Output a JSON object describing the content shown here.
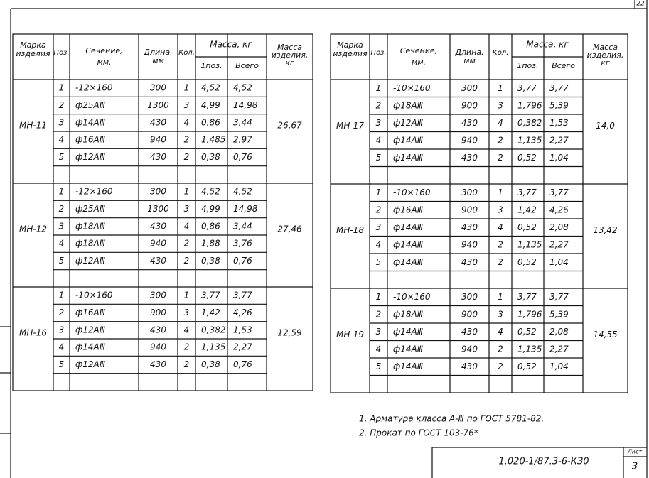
{
  "corner": "22",
  "tables": [
    {
      "header": {
        "mark": [
          "Марка",
          "изделия"
        ],
        "pos": "Поз.",
        "section": [
          "Сечение,",
          "мм."
        ],
        "length": [
          "Длина,",
          "мм"
        ],
        "qty": "Кол.",
        "mass": "Масса, кг",
        "mass_one": "1поз.",
        "mass_total": "Всего",
        "item_mass": [
          "Масса",
          "изделия,",
          "кг"
        ]
      },
      "groups": [
        {
          "mark": "МН-11",
          "total": "26,67",
          "rows": [
            [
              "1",
              "-12×160",
              "300",
              "1",
              "4,52",
              "4,52"
            ],
            [
              "2",
              "ф25АⅢ",
              "1300",
              "3",
              "4,99",
              "14,98"
            ],
            [
              "3",
              "ф14АⅢ",
              "430",
              "4",
              "0,86",
              "3,44"
            ],
            [
              "4",
              "ф16АⅢ",
              "940",
              "2",
              "1,485",
              "2,97"
            ],
            [
              "5",
              "ф12АⅢ",
              "430",
              "2",
              "0,38",
              "0,76"
            ]
          ]
        },
        {
          "mark": "МН-12",
          "total": "27,46",
          "rows": [
            [
              "1",
              "-12×160",
              "300",
              "1",
              "4,52",
              "4,52"
            ],
            [
              "2",
              "ф25АⅢ",
              "1300",
              "3",
              "4,99",
              "14,98"
            ],
            [
              "3",
              "ф18АⅢ",
              "430",
              "4",
              "0,86",
              "3,44"
            ],
            [
              "4",
              "ф18АⅢ",
              "940",
              "2",
              "1,88",
              "3,76"
            ],
            [
              "5",
              "ф12АⅢ",
              "430",
              "2",
              "0,38",
              "0,76"
            ]
          ]
        },
        {
          "mark": "МН-16",
          "total": "12,59",
          "rows": [
            [
              "1",
              "-10×160",
              "300",
              "1",
              "3,77",
              "3,77"
            ],
            [
              "2",
              "ф16АⅢ",
              "900",
              "3",
              "1,42",
              "4,26"
            ],
            [
              "3",
              "ф12АⅢ",
              "430",
              "4",
              "0,382",
              "1,53"
            ],
            [
              "4",
              "ф14АⅢ",
              "940",
              "2",
              "1,135",
              "2,27"
            ],
            [
              "5",
              "ф12АⅢ",
              "430",
              "2",
              "0,38",
              "0,76"
            ]
          ]
        }
      ]
    },
    {
      "header": {
        "mark": [
          "Марка",
          "изделия"
        ],
        "pos": "Поз.",
        "section": [
          "Сечение,",
          "мм."
        ],
        "length": [
          "Длина,",
          "мм"
        ],
        "qty": "Кол.",
        "mass": "Масса, кг",
        "mass_one": "1поз.",
        "mass_total": "Всего",
        "item_mass": [
          "Масса",
          "изделия,",
          "кг"
        ]
      },
      "groups": [
        {
          "mark": "МН-17",
          "total": "14,0",
          "rows": [
            [
              "1",
              "-10×160",
              "300",
              "1",
              "3,77",
              "3,77"
            ],
            [
              "2",
              "ф18АⅢ",
              "900",
              "3",
              "1,796",
              "5,39"
            ],
            [
              "3",
              "ф12АⅢ",
              "430",
              "4",
              "0,382",
              "1,53"
            ],
            [
              "4",
              "ф14АⅢ",
              "940",
              "2",
              "1,135",
              "2,27"
            ],
            [
              "5",
              "ф14АⅢ",
              "430",
              "2",
              "0,52",
              "1,04"
            ]
          ]
        },
        {
          "mark": "МН-18",
          "total": "13,42",
          "rows": [
            [
              "1",
              "-10×160",
              "300",
              "1",
              "3,77",
              "3,77"
            ],
            [
              "2",
              "ф16АⅢ",
              "900",
              "3",
              "1,42",
              "4,26"
            ],
            [
              "3",
              "ф14АⅢ",
              "430",
              "4",
              "0,52",
              "2,08"
            ],
            [
              "4",
              "ф14АⅢ",
              "940",
              "2",
              "1,135",
              "2,27"
            ],
            [
              "5",
              "ф14АⅢ",
              "430",
              "2",
              "0,52",
              "1,04"
            ]
          ]
        },
        {
          "mark": "МН-19",
          "total": "14,55",
          "rows": [
            [
              "1",
              "-10×160",
              "300",
              "1",
              "3,77",
              "3,77"
            ],
            [
              "2",
              "ф18АⅢ",
              "900",
              "3",
              "1,796",
              "5,39"
            ],
            [
              "3",
              "ф14АⅢ",
              "430",
              "4",
              "0,52",
              "2,08"
            ],
            [
              "4",
              "ф14АⅢ",
              "940",
              "2",
              "1,135",
              "2,27"
            ],
            [
              "5",
              "ф14АⅢ",
              "430",
              "2",
              "0,52",
              "1,04"
            ]
          ]
        }
      ]
    }
  ],
  "notes": [
    "1. Арматура класса А-Ⅲ по ГОСТ 5781-82.",
    "2. Прокат по ГОСТ 103-76*"
  ],
  "stamp": {
    "code": "1.020-1/87.3-6-КЗ0",
    "sheet_label": "Лист",
    "sheet": "3"
  }
}
